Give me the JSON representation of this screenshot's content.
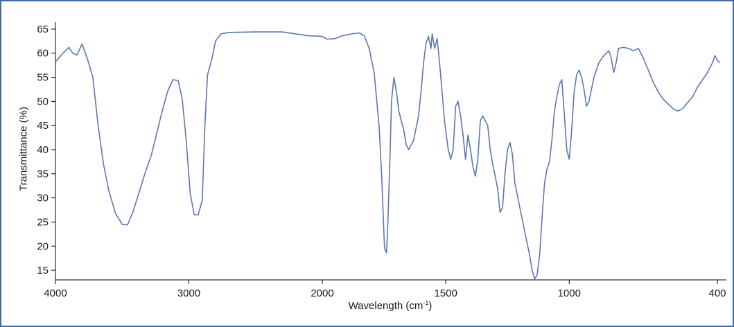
{
  "chart_data": {
    "type": "line",
    "title": "",
    "xlabel": "Wavelength",
    "xlabel_unit_base": "cm",
    "xlabel_unit_exp": "-1",
    "ylabel": "Transmittance (%)",
    "xlim": [
      4000,
      375
    ],
    "ylim": [
      13,
      67
    ],
    "x_ticks": [
      4000,
      3000,
      2000,
      1500,
      1000,
      400
    ],
    "x_tick_labels": [
      "4000",
      "3000",
      "2000",
      "1500",
      "1000",
      "400"
    ],
    "y_ticks": [
      15,
      20,
      25,
      30,
      35,
      40,
      45,
      50,
      55,
      60,
      65
    ],
    "y_tick_labels": [
      "15",
      "20",
      "25",
      "30",
      "35",
      "40",
      "45",
      "50",
      "55",
      "60",
      "65"
    ],
    "grid": false,
    "line_color": "#5b76b5",
    "series": [
      {
        "name": "",
        "points": [
          [
            4000,
            58.2
          ],
          [
            3950,
            59.8
          ],
          [
            3900,
            61.2
          ],
          [
            3870,
            60.0
          ],
          [
            3840,
            59.6
          ],
          [
            3800,
            61.9
          ],
          [
            3760,
            58.8
          ],
          [
            3720,
            55.0
          ],
          [
            3680,
            45.0
          ],
          [
            3640,
            37.0
          ],
          [
            3600,
            31.5
          ],
          [
            3550,
            26.8
          ],
          [
            3500,
            24.5
          ],
          [
            3460,
            24.4
          ],
          [
            3420,
            27.0
          ],
          [
            3380,
            30.5
          ],
          [
            3330,
            35.0
          ],
          [
            3280,
            39.0
          ],
          [
            3240,
            43.5
          ],
          [
            3200,
            48.0
          ],
          [
            3160,
            52.0
          ],
          [
            3120,
            54.5
          ],
          [
            3080,
            54.3
          ],
          [
            3050,
            50.5
          ],
          [
            3020,
            42.0
          ],
          [
            2990,
            31.0
          ],
          [
            2960,
            26.5
          ],
          [
            2930,
            26.5
          ],
          [
            2900,
            29.5
          ],
          [
            2880,
            45.0
          ],
          [
            2860,
            55.5
          ],
          [
            2830,
            58.5
          ],
          [
            2800,
            62.5
          ],
          [
            2760,
            64.0
          ],
          [
            2700,
            64.3
          ],
          [
            2500,
            64.4
          ],
          [
            2300,
            64.4
          ],
          [
            2200,
            64.0
          ],
          [
            2100,
            63.6
          ],
          [
            2000,
            63.5
          ],
          [
            1980,
            62.9
          ],
          [
            1950,
            63.0
          ],
          [
            1920,
            63.6
          ],
          [
            1880,
            64.0
          ],
          [
            1850,
            64.2
          ],
          [
            1830,
            63.6
          ],
          [
            1810,
            61.0
          ],
          [
            1790,
            56.0
          ],
          [
            1770,
            45.0
          ],
          [
            1760,
            35.0
          ],
          [
            1748,
            19.5
          ],
          [
            1740,
            18.6
          ],
          [
            1735,
            24.0
          ],
          [
            1725,
            40.0
          ],
          [
            1720,
            50.0
          ],
          [
            1710,
            55.0
          ],
          [
            1700,
            52.0
          ],
          [
            1690,
            48.0
          ],
          [
            1680,
            46.0
          ],
          [
            1670,
            44.0
          ],
          [
            1660,
            41.0
          ],
          [
            1650,
            40.0
          ],
          [
            1630,
            42.0
          ],
          [
            1610,
            47.0
          ],
          [
            1600,
            52.0
          ],
          [
            1590,
            58.0
          ],
          [
            1580,
            62.0
          ],
          [
            1570,
            63.5
          ],
          [
            1560,
            61.0
          ],
          [
            1555,
            64.0
          ],
          [
            1545,
            61.0
          ],
          [
            1535,
            63.0
          ],
          [
            1525,
            58.0
          ],
          [
            1515,
            52.0
          ],
          [
            1505,
            46.0
          ],
          [
            1495,
            42.0
          ],
          [
            1490,
            40.0
          ],
          [
            1480,
            38.0
          ],
          [
            1470,
            40.0
          ],
          [
            1460,
            49.0
          ],
          [
            1450,
            50.0
          ],
          [
            1440,
            47.0
          ],
          [
            1430,
            43.0
          ],
          [
            1420,
            38.0
          ],
          [
            1410,
            43.0
          ],
          [
            1400,
            40.0
          ],
          [
            1390,
            36.5
          ],
          [
            1380,
            34.5
          ],
          [
            1370,
            38.0
          ],
          [
            1360,
            46.0
          ],
          [
            1350,
            47.0
          ],
          [
            1340,
            46.0
          ],
          [
            1330,
            45.0
          ],
          [
            1320,
            40.0
          ],
          [
            1310,
            37.0
          ],
          [
            1300,
            34.5
          ],
          [
            1290,
            32.0
          ],
          [
            1280,
            27.0
          ],
          [
            1270,
            28.0
          ],
          [
            1260,
            35.0
          ],
          [
            1250,
            40.0
          ],
          [
            1240,
            41.5
          ],
          [
            1230,
            39.0
          ],
          [
            1220,
            33.0
          ],
          [
            1200,
            28.0
          ],
          [
            1180,
            23.0
          ],
          [
            1160,
            18.0
          ],
          [
            1150,
            15.0
          ],
          [
            1140,
            13.2
          ],
          [
            1130,
            14.0
          ],
          [
            1120,
            18.0
          ],
          [
            1110,
            26.0
          ],
          [
            1100,
            33.0
          ],
          [
            1090,
            36.0
          ],
          [
            1080,
            37.5
          ],
          [
            1070,
            42.0
          ],
          [
            1060,
            48.0
          ],
          [
            1050,
            51.0
          ],
          [
            1040,
            53.5
          ],
          [
            1030,
            54.5
          ],
          [
            1020,
            47.5
          ],
          [
            1010,
            40.0
          ],
          [
            1000,
            38.0
          ],
          [
            990,
            44.0
          ],
          [
            980,
            52.0
          ],
          [
            970,
            55.5
          ],
          [
            960,
            56.5
          ],
          [
            950,
            55.0
          ],
          [
            940,
            52.5
          ],
          [
            930,
            49.0
          ],
          [
            920,
            50.0
          ],
          [
            910,
            52.5
          ],
          [
            900,
            55.0
          ],
          [
            880,
            58.0
          ],
          [
            860,
            59.5
          ],
          [
            840,
            60.5
          ],
          [
            830,
            59.0
          ],
          [
            820,
            56.0
          ],
          [
            810,
            58.0
          ],
          [
            800,
            61.0
          ],
          [
            780,
            61.2
          ],
          [
            760,
            61.0
          ],
          [
            740,
            60.5
          ],
          [
            720,
            61.0
          ],
          [
            700,
            59.0
          ],
          [
            680,
            56.5
          ],
          [
            660,
            54.0
          ],
          [
            640,
            52.0
          ],
          [
            620,
            50.5
          ],
          [
            600,
            49.5
          ],
          [
            580,
            48.5
          ],
          [
            560,
            48.0
          ],
          [
            540,
            48.5
          ],
          [
            520,
            49.8
          ],
          [
            500,
            51.0
          ],
          [
            480,
            53.0
          ],
          [
            460,
            54.5
          ],
          [
            440,
            56.0
          ],
          [
            420,
            58.0
          ],
          [
            410,
            59.5
          ],
          [
            400,
            58.5
          ],
          [
            390,
            58.0
          ]
        ]
      }
    ]
  }
}
